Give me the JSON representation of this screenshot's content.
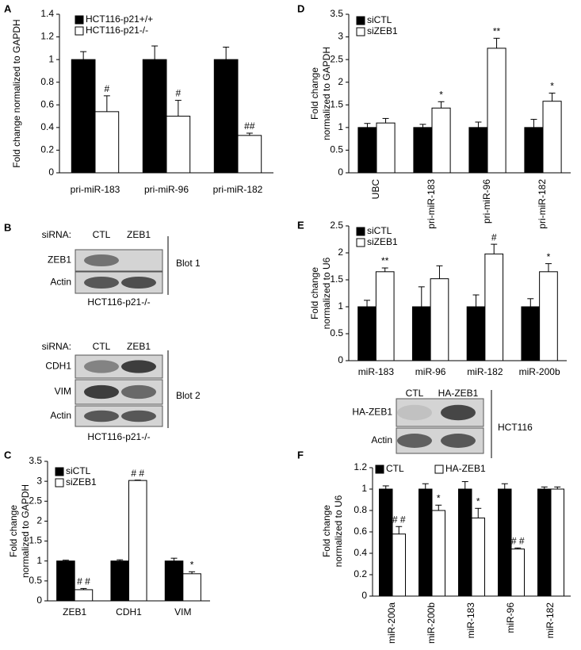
{
  "chart_data": [
    {
      "type": "bar",
      "panel": "A",
      "ylabel": [
        "Fold change normalized to GAPDH"
      ],
      "categories": [
        "pri-miR-183",
        "pri-miR-96",
        "pri-miR-182"
      ],
      "ylim": [
        0,
        1.4
      ],
      "yticks": [
        0,
        0.2,
        0.4,
        0.6,
        0.8,
        1,
        1.2,
        1.4
      ],
      "legend": "upper left",
      "legend_layout": "vertical",
      "series": [
        {
          "name": "HCT116-p21+/+",
          "color": "#000000",
          "values": [
            1,
            1,
            1
          ],
          "errors": [
            0.07,
            0.12,
            0.11
          ]
        },
        {
          "name": "HCT116-p21-/-",
          "color": "#ffffff",
          "values": [
            0.54,
            0.5,
            0.33
          ],
          "errors": [
            0.14,
            0.14,
            0.02
          ],
          "marks": [
            "#",
            "#",
            "##"
          ]
        }
      ]
    },
    {
      "type": "bar",
      "panel": "D",
      "ylabel": [
        "Fold change",
        "normalized to GAPDH"
      ],
      "categories": [
        "UBC",
        "pri-miR-183",
        "pri-miR-96",
        "pri-miR-182"
      ],
      "rotate_categories": true,
      "ylim": [
        0,
        3.5
      ],
      "yticks": [
        0,
        0.5,
        1,
        1.5,
        2,
        2.5,
        3,
        3.5
      ],
      "legend": "upper left",
      "legend_layout": "vertical",
      "series": [
        {
          "name": "siCTL",
          "color": "#000000",
          "values": [
            1,
            1,
            1,
            1
          ],
          "errors": [
            0.09,
            0.07,
            0.12,
            0.18
          ]
        },
        {
          "name": "siZEB1",
          "color": "#ffffff",
          "values": [
            1.1,
            1.43,
            2.75,
            1.58
          ],
          "errors": [
            0.1,
            0.14,
            0.22,
            0.18
          ],
          "marks": [
            null,
            "*",
            "**",
            "*"
          ]
        }
      ]
    },
    {
      "type": "bar",
      "panel": "E",
      "ylabel": [
        "Fold change",
        "normalized to U6"
      ],
      "categories": [
        "miR-183",
        "miR-96",
        "miR-182",
        "miR-200b"
      ],
      "ylim": [
        0,
        2.5
      ],
      "yticks": [
        0,
        0.5,
        1,
        1.5,
        2,
        2.5
      ],
      "legend": "upper left",
      "legend_layout": "vertical",
      "series": [
        {
          "name": "siCTL",
          "color": "#000000",
          "values": [
            1,
            1,
            1,
            1
          ],
          "errors": [
            0.12,
            0.37,
            0.22,
            0.15
          ]
        },
        {
          "name": "siZEB1",
          "color": "#ffffff",
          "values": [
            1.65,
            1.52,
            1.98,
            1.65
          ],
          "errors": [
            0.07,
            0.24,
            0.18,
            0.15
          ],
          "marks": [
            "**",
            null,
            "#",
            "*"
          ]
        }
      ]
    },
    {
      "type": "bar",
      "panel": "C",
      "ylabel": [
        "Fold change",
        "normalized to GAPDH"
      ],
      "categories": [
        "ZEB1",
        "CDH1",
        "VIM"
      ],
      "ylim": [
        0,
        3.5
      ],
      "yticks": [
        0,
        0.5,
        1,
        1.5,
        2,
        2.5,
        3,
        3.5
      ],
      "legend": "upper left",
      "legend_layout": "vertical",
      "series": [
        {
          "name": "siCTL",
          "color": "#000000",
          "values": [
            1,
            1,
            1
          ],
          "errors": [
            0.02,
            0.03,
            0.07
          ]
        },
        {
          "name": "siZEB1",
          "color": "#ffffff",
          "values": [
            0.28,
            3.02,
            0.68
          ],
          "errors": [
            0.03,
            0.01,
            0.05
          ],
          "marks": [
            "# #",
            "# #",
            "*"
          ]
        }
      ]
    },
    {
      "type": "bar",
      "panel": "F",
      "ylabel": [
        "Fold change",
        "normalized to U6"
      ],
      "categories": [
        "miR-200a",
        "miR-200b",
        "miR-183",
        "miR-96",
        "miR-182"
      ],
      "rotate_categories": true,
      "ylim": [
        0,
        1.2
      ],
      "yticks": [
        0,
        0.2,
        0.4,
        0.6,
        0.8,
        1,
        1.2
      ],
      "legend": "upper left",
      "legend_layout": "horizontal",
      "series": [
        {
          "name": "CTL",
          "color": "#000000",
          "values": [
            1,
            1,
            1,
            1,
            1
          ],
          "errors": [
            0.03,
            0.05,
            0.07,
            0.05,
            0.02
          ]
        },
        {
          "name": "HA-ZEB1",
          "color": "#ffffff",
          "values": [
            0.58,
            0.8,
            0.73,
            0.44,
            1.0
          ],
          "errors": [
            0.07,
            0.05,
            0.09,
            0.01,
            0.02
          ],
          "marks": [
            "# #",
            "*",
            "*",
            "# #",
            null
          ]
        }
      ]
    }
  ],
  "blots": [
    {
      "panel": "B",
      "header": "siRNA:",
      "lanes": [
        "CTL",
        "ZEB1"
      ],
      "rows": [
        "ZEB1",
        "Actin"
      ],
      "label": "Blot 1",
      "footer": "HCT116-p21-/-"
    },
    {
      "header": "siRNA:",
      "lanes": [
        "CTL",
        "ZEB1"
      ],
      "rows": [
        "CDH1",
        "VIM",
        "Actin"
      ],
      "label": "Blot 2",
      "footer": "HCT116-p21-/-"
    },
    {
      "lanes": [
        "CTL",
        "HA-ZEB1"
      ],
      "rows": [
        "HA-ZEB1",
        "Actin"
      ],
      "label": "HCT116"
    }
  ]
}
